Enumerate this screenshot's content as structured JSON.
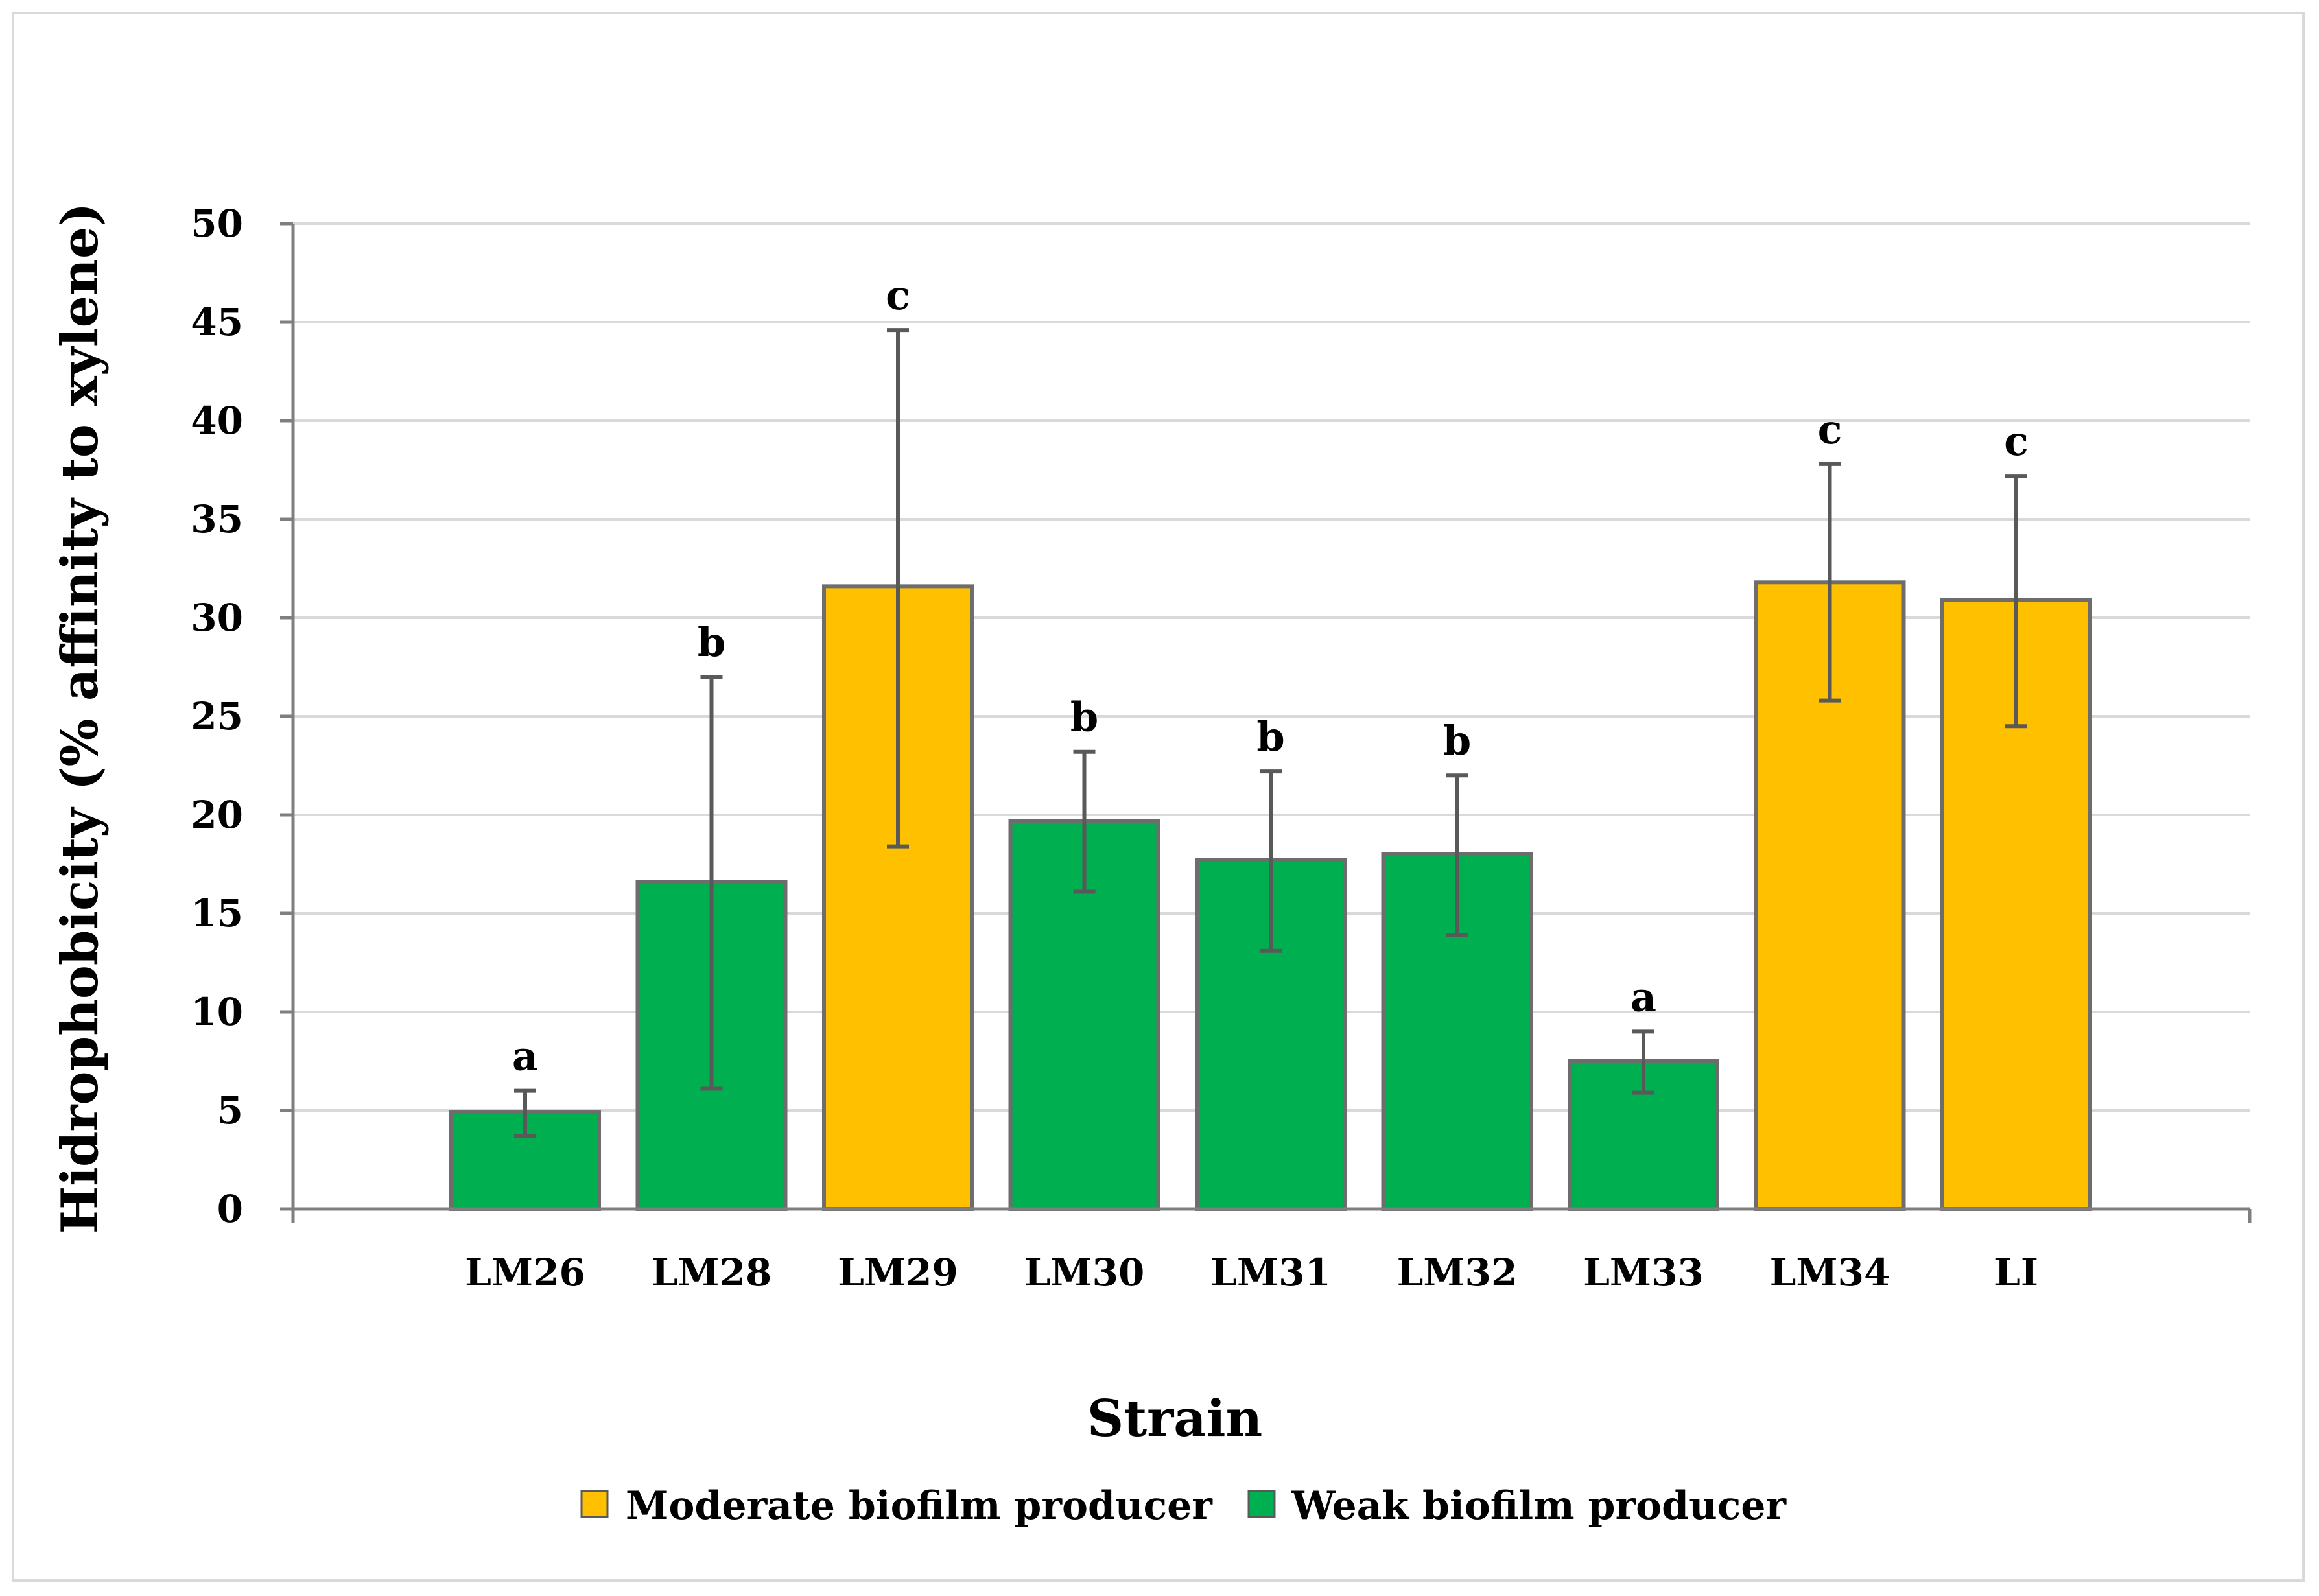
{
  "chart_data": {
    "type": "bar",
    "title": "",
    "xlabel": "Strain",
    "ylabel": "Hidrophobicity (% affinity to xylene)",
    "ylim": [
      0,
      50
    ],
    "yticks": [
      "0",
      "5",
      "10",
      "15",
      "20",
      "25",
      "30",
      "35",
      "40",
      "45",
      "50"
    ],
    "grid": true,
    "categories": [
      "LM26",
      "LM28",
      "LM29",
      "LM30",
      "LM31",
      "LM32",
      "LM33",
      "LM34",
      "LI"
    ],
    "values": [
      4.9,
      16.6,
      31.6,
      19.7,
      17.7,
      18.0,
      7.5,
      31.8,
      30.9
    ],
    "error_low": [
      3.7,
      6.1,
      18.4,
      16.1,
      13.1,
      13.9,
      5.9,
      25.8,
      24.5
    ],
    "error_high": [
      6.0,
      27.0,
      44.6,
      23.2,
      22.2,
      22.0,
      9.0,
      37.8,
      37.2
    ],
    "groups": [
      "Weak biofilm producer",
      "Weak biofilm producer",
      "Moderate biofilm producer",
      "Weak biofilm producer",
      "Weak biofilm producer",
      "Weak biofilm producer",
      "Weak biofilm producer",
      "Moderate biofilm producer",
      "Moderate biofilm producer"
    ],
    "significance_letters": [
      "a",
      "b",
      "c",
      "b",
      "b",
      "b",
      "a",
      "c",
      "c"
    ],
    "legend": [
      {
        "label": "Moderate biofilm producer",
        "color": "#FFC000"
      },
      {
        "label": "Weak biofilm producer",
        "color": "#00B050"
      }
    ],
    "legend_position": "bottom-center"
  },
  "colors": {
    "moderate": "#FFC000",
    "weak": "#00B050",
    "bar_outline": "#6d6d6d",
    "error_bar": "#595959",
    "grid": "#d9d9d9",
    "axis": "#7f7f7f"
  }
}
